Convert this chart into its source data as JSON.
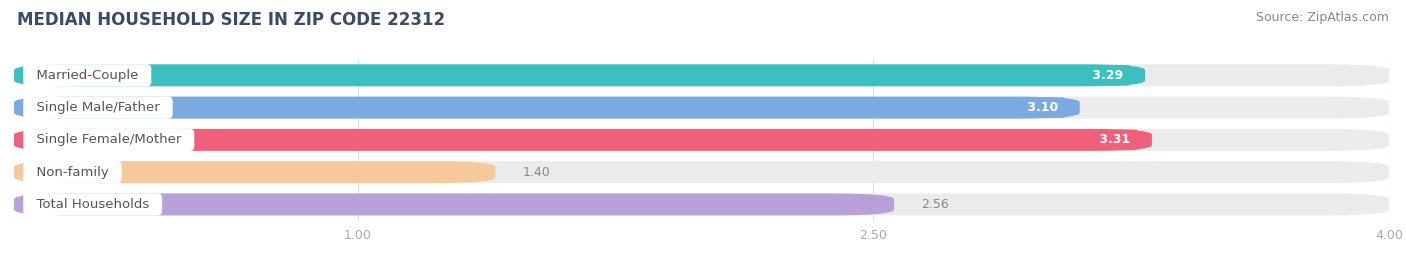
{
  "title": "MEDIAN HOUSEHOLD SIZE IN ZIP CODE 22312",
  "source": "Source: ZipAtlas.com",
  "categories": [
    "Married-Couple",
    "Single Male/Father",
    "Single Female/Mother",
    "Non-family",
    "Total Households"
  ],
  "values": [
    3.29,
    3.1,
    3.31,
    1.4,
    2.56
  ],
  "bar_colors": [
    "#3bbfbf",
    "#7baae0",
    "#f0607a",
    "#f5c99a",
    "#b8a0d8"
  ],
  "value_label_inside": [
    true,
    true,
    true,
    false,
    false
  ],
  "xlim_min": 0.0,
  "xlim_max": 4.0,
  "xticks": [
    1.0,
    2.5,
    4.0
  ],
  "background_color": "#ffffff",
  "bar_bg_color": "#ebebeb",
  "title_fontsize": 12,
  "source_fontsize": 9,
  "label_fontsize": 9.5,
  "value_fontsize": 9,
  "tick_fontsize": 9,
  "title_color": "#3a4a6b",
  "source_color": "#888888",
  "tick_color": "#aaaaaa",
  "label_text_color": "#555555",
  "value_text_color_inside": "#ffffff",
  "value_text_color_outside": "#888888"
}
